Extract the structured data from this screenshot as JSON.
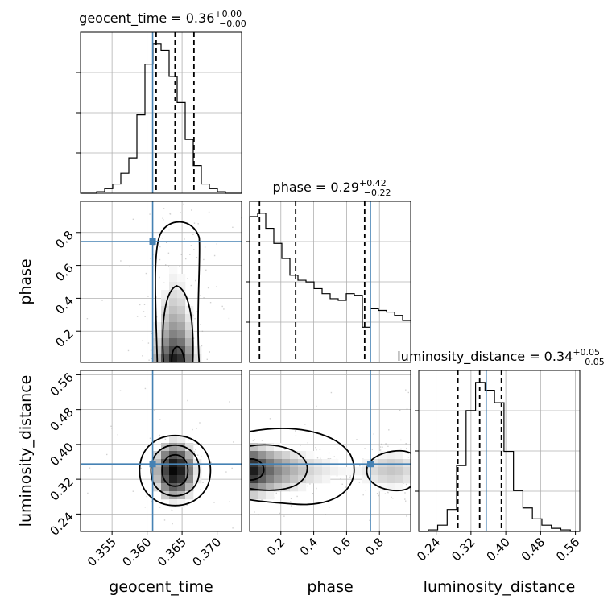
{
  "chart_data": {
    "type": "corner",
    "parameters": [
      {
        "name": "geocent_time",
        "label": "geocent_time",
        "range": [
          0.3505,
          0.3735
        ],
        "ticks": [
          0.355,
          0.36,
          0.365,
          0.37
        ],
        "tick_labels": [
          "0.355",
          "0.360",
          "0.365",
          "0.370"
        ],
        "truth": 0.3608,
        "quantiles": [
          0.3613,
          0.364,
          0.3667
        ],
        "title": "geocent_time = 0.36",
        "title_sup": "+0.00",
        "title_sub": "−0.00",
        "hist_range": [
          0.3505,
          0.3735
        ],
        "hist": [
          0,
          0,
          1,
          3,
          6,
          13,
          23,
          51,
          84,
          97,
          93,
          76,
          59,
          35,
          18,
          6,
          3,
          1,
          0,
          0
        ]
      },
      {
        "name": "phase",
        "label": "phase",
        "range": [
          0.01,
          0.99
        ],
        "ticks": [
          0.2,
          0.4,
          0.6,
          0.8
        ],
        "tick_labels": [
          "0.2",
          "0.4",
          "0.6",
          "0.8"
        ],
        "truth": 0.745,
        "quantiles": [
          0.07,
          0.29,
          0.71
        ],
        "title": "phase = 0.29",
        "title_sup": "+0.42",
        "title_sub": "−0.22",
        "hist_range": [
          0.01,
          0.99
        ],
        "hist": [
          87,
          89,
          80,
          71,
          62,
          52,
          49,
          48,
          44,
          41,
          38,
          37,
          41,
          40,
          21,
          32,
          31,
          30,
          28,
          25
        ]
      },
      {
        "name": "luminosity_distance",
        "label": "luminosity_distance",
        "range": [
          0.2,
          0.57
        ],
        "ticks": [
          0.24,
          0.32,
          0.4,
          0.48,
          0.56
        ],
        "tick_labels": [
          "0.24",
          "0.32",
          "0.40",
          "0.48",
          "0.56"
        ],
        "truth": 0.355,
        "quantiles": [
          0.29,
          0.34,
          0.39
        ],
        "title": "luminosity_distance = 0.34",
        "title_sup": "+0.05",
        "title_sub": "−0.05",
        "hist_range": [
          0.2,
          0.57
        ],
        "hist": [
          0,
          1,
          4,
          14,
          42,
          77,
          95,
          90,
          82,
          51,
          26,
          15,
          8,
          4,
          2,
          1,
          0
        ]
      }
    ],
    "grid": true
  }
}
